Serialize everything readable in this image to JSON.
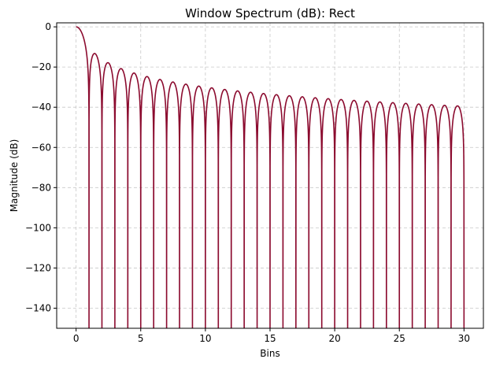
{
  "chart_data": {
    "type": "line",
    "title": "Window Spectrum (dB): Rect",
    "xlabel": "Bins",
    "ylabel": "Magnitude (dB)",
    "xlim": [
      -1.5,
      31.5
    ],
    "ylim": [
      -150,
      2
    ],
    "xticks": [
      0,
      5,
      10,
      15,
      20,
      25,
      30
    ],
    "yticks": [
      0,
      -20,
      -40,
      -60,
      -80,
      -100,
      -120,
      -140
    ],
    "xtick_labels": [
      "0",
      "5",
      "10",
      "15",
      "20",
      "25",
      "30"
    ],
    "ytick_labels": [
      "0",
      "−20",
      "−40",
      "−60",
      "−80",
      "−100",
      "−120",
      "−140"
    ],
    "grid": true,
    "series": [
      {
        "function": "20*log10(|sinc(x)|)",
        "x_range": [
          0,
          30
        ],
        "floor": -150,
        "color": "#8b0a2e"
      }
    ]
  }
}
